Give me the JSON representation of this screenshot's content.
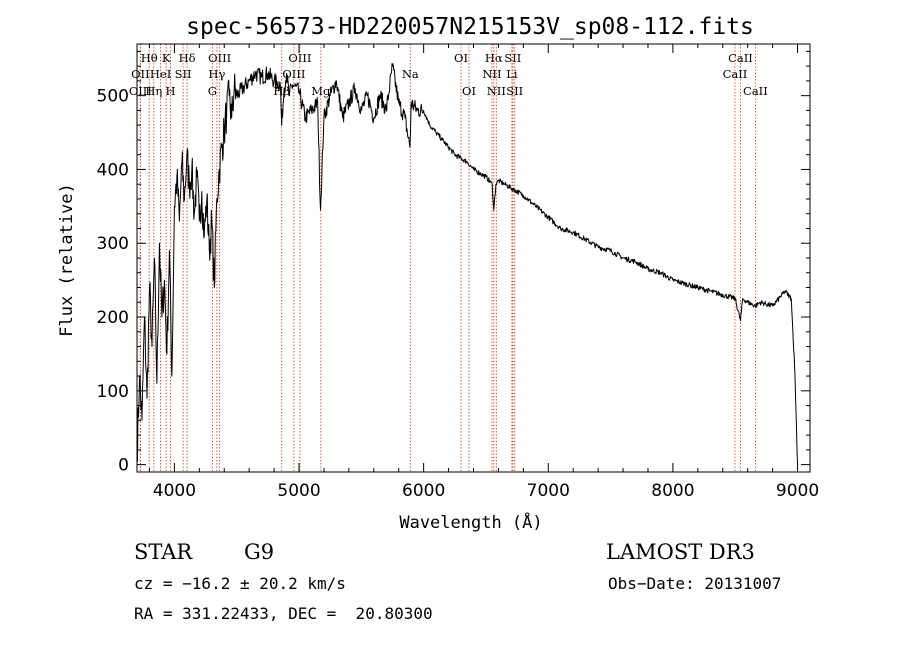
{
  "chart_data": {
    "type": "line",
    "title": "spec-56573-HD220057N215153V_sp08-112.fits",
    "xlabel": "Wavelength (Å)",
    "ylabel": "Flux (relative)",
    "xlim": [
      3700,
      9100
    ],
    "ylim": [
      -10,
      570
    ],
    "xticks": [
      4000,
      5000,
      6000,
      7000,
      8000,
      9000
    ],
    "yticks": [
      0,
      100,
      200,
      300,
      400,
      500
    ],
    "x_minor_step": 200,
    "y_minor_step": 20,
    "series": [
      {
        "name": "spectrum",
        "x": [
          3700,
          3720,
          3740,
          3760,
          3780,
          3800,
          3820,
          3840,
          3860,
          3880,
          3900,
          3920,
          3940,
          3960,
          3980,
          4000,
          4020,
          4040,
          4060,
          4080,
          4100,
          4120,
          4140,
          4160,
          4180,
          4200,
          4220,
          4240,
          4260,
          4280,
          4300,
          4320,
          4340,
          4360,
          4380,
          4400,
          4420,
          4440,
          4460,
          4480,
          4500,
          4550,
          4600,
          4650,
          4700,
          4750,
          4800,
          4850,
          4861,
          4880,
          4900,
          4920,
          4950,
          5000,
          5050,
          5100,
          5150,
          5172,
          5200,
          5250,
          5300,
          5350,
          5400,
          5450,
          5500,
          5550,
          5600,
          5650,
          5700,
          5750,
          5800,
          5850,
          5890,
          5900,
          5950,
          6000,
          6050,
          6100,
          6150,
          6200,
          6250,
          6300,
          6350,
          6400,
          6450,
          6500,
          6550,
          6563,
          6580,
          6600,
          6650,
          6700,
          6750,
          6800,
          6900,
          7000,
          7100,
          7200,
          7300,
          7400,
          7500,
          7600,
          7700,
          7800,
          7900,
          8000,
          8100,
          8200,
          8300,
          8400,
          8500,
          8542,
          8560,
          8600,
          8662,
          8700,
          8800,
          8850,
          8900,
          8950,
          8980,
          9000
        ],
        "y": [
          10,
          120,
          60,
          200,
          90,
          240,
          160,
          280,
          110,
          300,
          200,
          250,
          150,
          290,
          120,
          350,
          390,
          330,
          410,
          360,
          420,
          380,
          400,
          340,
          390,
          330,
          370,
          310,
          360,
          290,
          330,
          240,
          360,
          400,
          430,
          450,
          480,
          500,
          470,
          510,
          500,
          510,
          520,
          530,
          525,
          530,
          520,
          515,
          460,
          510,
          530,
          500,
          515,
          505,
          470,
          480,
          490,
          345,
          470,
          500,
          520,
          470,
          490,
          510,
          480,
          500,
          470,
          500,
          480,
          540,
          490,
          470,
          430,
          490,
          480,
          480,
          460,
          450,
          440,
          430,
          420,
          415,
          410,
          400,
          395,
          390,
          380,
          345,
          380,
          385,
          380,
          375,
          370,
          365,
          350,
          335,
          320,
          315,
          305,
          295,
          290,
          280,
          275,
          265,
          260,
          250,
          245,
          240,
          235,
          230,
          225,
          195,
          225,
          220,
          215,
          220,
          215,
          225,
          235,
          225,
          120,
          0
        ]
      }
    ],
    "spectral_lines": [
      {
        "label": "Hθ",
        "wl": 3798,
        "row": 1
      },
      {
        "label": "OII",
        "wl": 3727,
        "row": 2
      },
      {
        "label": "OIII",
        "wl": 3727,
        "row": 3
      },
      {
        "label": "K",
        "wl": 3934,
        "row": 1
      },
      {
        "label": "HeI",
        "wl": 3889,
        "row": 2
      },
      {
        "label": "Hη",
        "wl": 3835,
        "row": 3
      },
      {
        "label": "Hδ",
        "wl": 4102,
        "row": 1
      },
      {
        "label": "SII",
        "wl": 4070,
        "row": 2
      },
      {
        "label": "H",
        "wl": 3969,
        "row": 3
      },
      {
        "label": "OIII",
        "wl": 4363,
        "row": 1
      },
      {
        "label": "Hγ",
        "wl": 4341,
        "row": 2
      },
      {
        "label": "G",
        "wl": 4305,
        "row": 3
      },
      {
        "label": "OIII",
        "wl": 5007,
        "row": 1
      },
      {
        "label": "OIII",
        "wl": 4959,
        "row": 2
      },
      {
        "label": "Hβ",
        "wl": 4861,
        "row": 3
      },
      {
        "label": "Mg",
        "wl": 5175,
        "row": 3
      },
      {
        "label": "Na",
        "wl": 5893,
        "row": 2
      },
      {
        "label": "OI",
        "wl": 6300,
        "row": 1
      },
      {
        "label": "OI",
        "wl": 6364,
        "row": 3
      },
      {
        "label": "Hα",
        "wl": 6563,
        "row": 1
      },
      {
        "label": "NII",
        "wl": 6548,
        "row": 2
      },
      {
        "label": "NII",
        "wl": 6583,
        "row": 3
      },
      {
        "label": "SII",
        "wl": 6716,
        "row": 1
      },
      {
        "label": "Li",
        "wl": 6708,
        "row": 2
      },
      {
        "label": "SII",
        "wl": 6731,
        "row": 3
      },
      {
        "label": "CaII",
        "wl": 8542,
        "row": 1
      },
      {
        "label": "CaII",
        "wl": 8498,
        "row": 2
      },
      {
        "label": "CaII",
        "wl": 8662,
        "row": 3
      }
    ]
  },
  "info": {
    "class": "STAR",
    "subclass": "G9",
    "survey": "LAMOST DR3",
    "cz": "cz = −16.2 ± 20.2 km/s",
    "obs_date": "Obs−Date: 20131007",
    "radec": "RA = 331.22433, DEC =  20.80300"
  }
}
